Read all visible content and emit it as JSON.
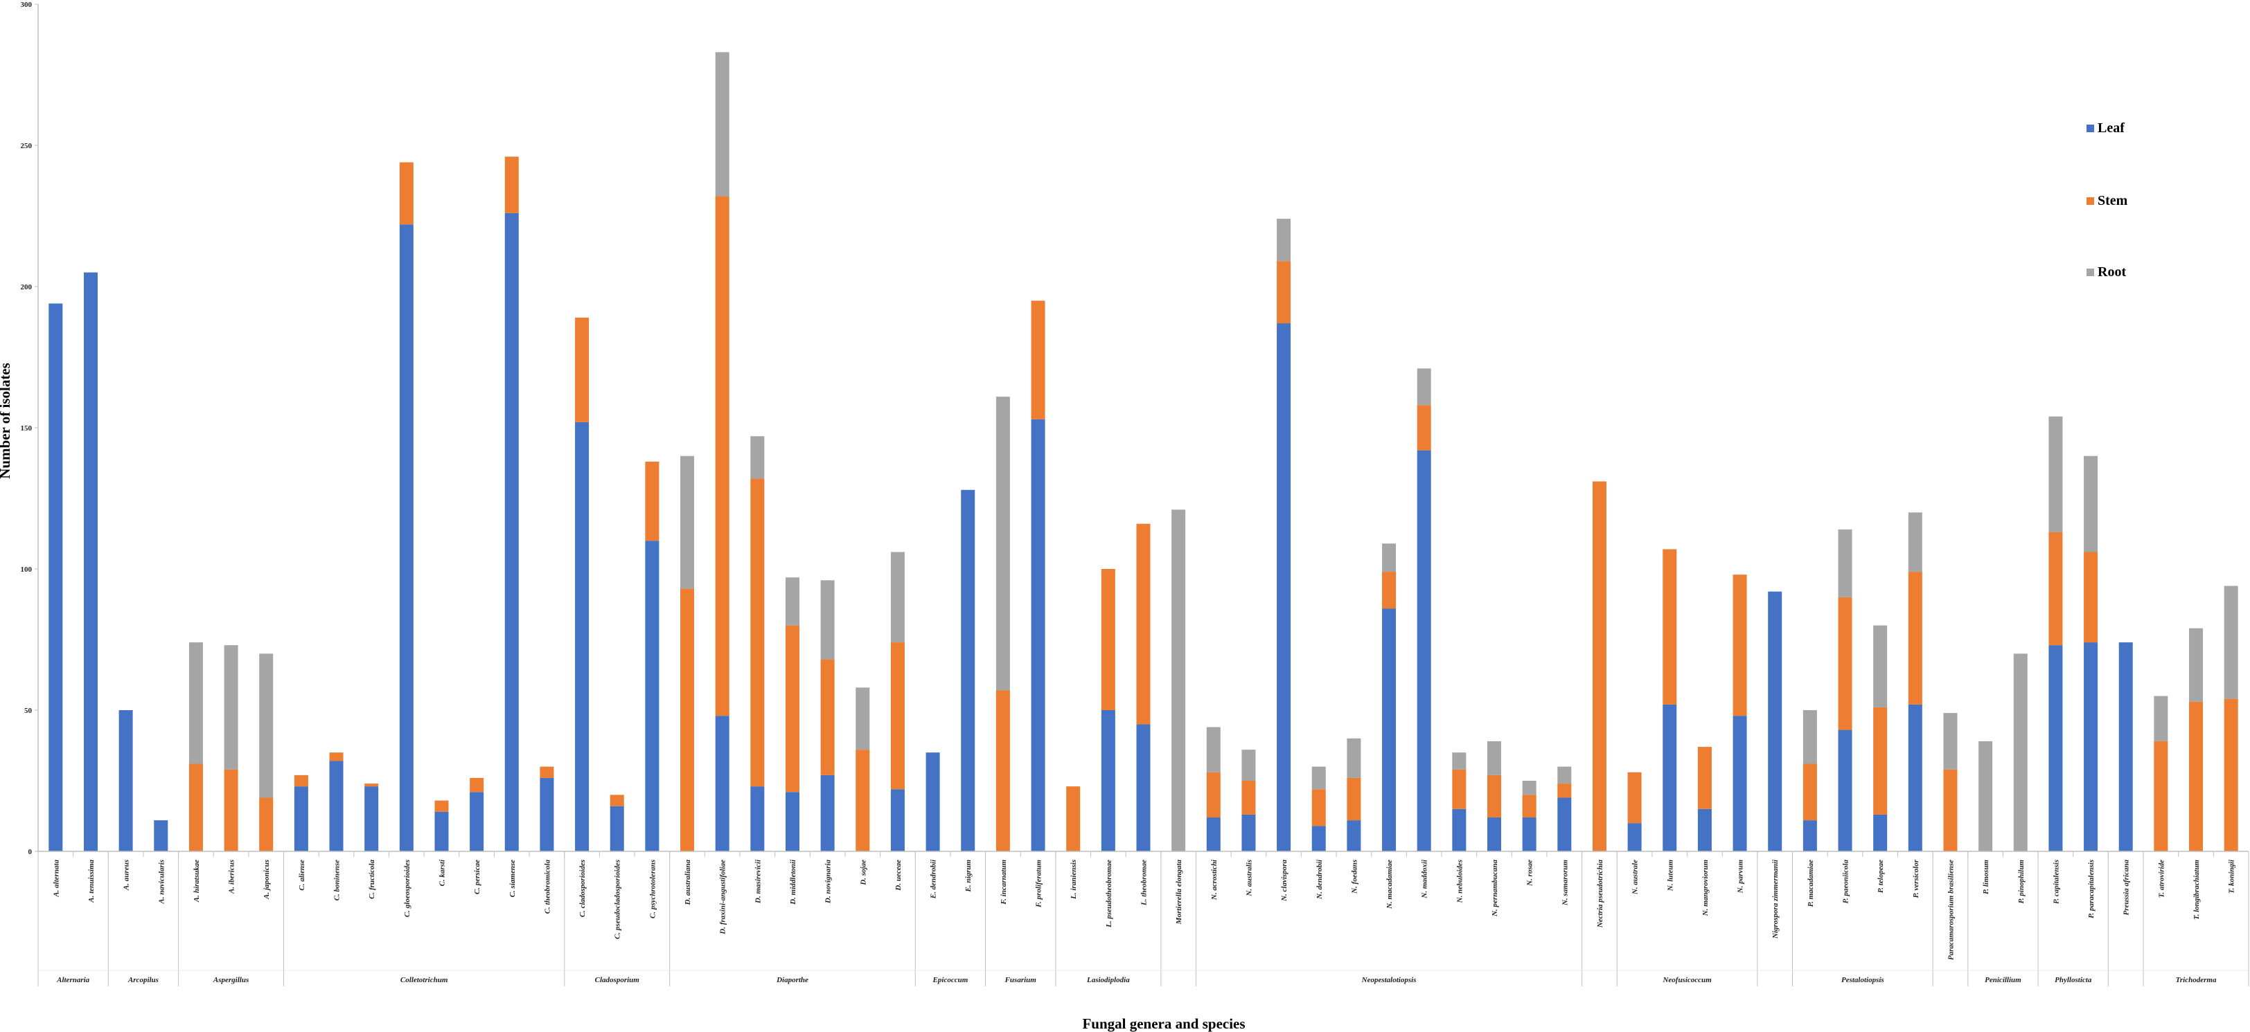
{
  "chart_data": {
    "type": "bar",
    "stacked": true,
    "xlabel": "Fungal genera and species",
    "ylabel": "Number of isolates",
    "ylim": [
      0,
      300
    ],
    "yticks": [
      0,
      50,
      100,
      150,
      200,
      250,
      300
    ],
    "legend_position": "right",
    "series": [
      {
        "name": "Leaf",
        "color": "#4472C4"
      },
      {
        "name": "Stem",
        "color": "#ED7D31"
      },
      {
        "name": "Root",
        "color": "#A5A5A5"
      }
    ],
    "groups": [
      {
        "genus": "Alternaria",
        "species": [
          {
            "name": "A. alternata",
            "values": [
              194,
              0,
              0
            ]
          },
          {
            "name": "A. tenuissima",
            "values": [
              205,
              0,
              0
            ]
          }
        ]
      },
      {
        "genus": "Arcopilus",
        "species": [
          {
            "name": "A. aureus",
            "values": [
              50,
              0,
              0
            ]
          },
          {
            "name": "A. navicularis",
            "values": [
              11,
              0,
              0
            ]
          }
        ]
      },
      {
        "genus": "Aspergillus",
        "species": [
          {
            "name": "A. hiratsukae",
            "values": [
              0,
              31,
              43
            ]
          },
          {
            "name": "A. ibericus",
            "values": [
              0,
              29,
              44
            ]
          },
          {
            "name": "A. japonicus",
            "values": [
              0,
              19,
              51
            ]
          }
        ]
      },
      {
        "genus": "Colletotrichum",
        "species": [
          {
            "name": "C. aliense",
            "values": [
              23,
              4,
              0
            ]
          },
          {
            "name": "C. boninense",
            "values": [
              32,
              3,
              0
            ]
          },
          {
            "name": "C. fructicola",
            "values": [
              23,
              1,
              0
            ]
          },
          {
            "name": "C. gloeosporioides",
            "values": [
              222,
              22,
              0
            ]
          },
          {
            "name": "C. karsti",
            "values": [
              14,
              4,
              0
            ]
          },
          {
            "name": "C. persicae",
            "values": [
              21,
              5,
              0
            ]
          },
          {
            "name": "C. siamense",
            "values": [
              226,
              20,
              0
            ]
          },
          {
            "name": "C. theobromicola",
            "values": [
              26,
              4,
              0
            ]
          }
        ]
      },
      {
        "genus": "Cladosporium",
        "species": [
          {
            "name": "C. cladosporioides",
            "values": [
              152,
              37,
              0
            ]
          },
          {
            "name": "C. pseudocladosporioides",
            "values": [
              16,
              4,
              0
            ]
          },
          {
            "name": "C. psychrotolerans",
            "values": [
              110,
              28,
              0
            ]
          }
        ]
      },
      {
        "genus": "Diaporthe",
        "species": [
          {
            "name": "D. australiana",
            "values": [
              0,
              93,
              47
            ]
          },
          {
            "name": "D. fraxini-angustifoliae",
            "values": [
              48,
              184,
              51
            ]
          },
          {
            "name": "D. masirevicii",
            "values": [
              23,
              109,
              15
            ]
          },
          {
            "name": "D. middletonii",
            "values": [
              21,
              59,
              17
            ]
          },
          {
            "name": "D. novignaria",
            "values": [
              27,
              41,
              28
            ]
          },
          {
            "name": "D. sojae",
            "values": [
              0,
              36,
              22
            ]
          },
          {
            "name": "D. ueceae",
            "values": [
              22,
              52,
              32
            ]
          }
        ]
      },
      {
        "genus": "Epicoccum",
        "species": [
          {
            "name": "E. dendrobii",
            "values": [
              35,
              0,
              0
            ]
          },
          {
            "name": "E. nigrum",
            "values": [
              128,
              0,
              0
            ]
          }
        ]
      },
      {
        "genus": "Fusarium",
        "species": [
          {
            "name": "F. incarnatum",
            "values": [
              0,
              57,
              104
            ]
          },
          {
            "name": "F. proliferatum",
            "values": [
              153,
              42,
              0
            ]
          }
        ]
      },
      {
        "genus": "Lasiodiplodia",
        "species": [
          {
            "name": "L. iraniensis",
            "values": [
              0,
              23,
              0
            ]
          },
          {
            "name": "L. pseudotheobromae",
            "values": [
              50,
              50,
              0
            ]
          },
          {
            "name": "L. theobromae",
            "values": [
              45,
              71,
              0
            ]
          }
        ]
      },
      {
        "genus": "",
        "species": [
          {
            "name": "Mortierella elongata",
            "values": [
              0,
              0,
              121
            ]
          }
        ]
      },
      {
        "genus": "Neopestalotiopsis",
        "species": [
          {
            "name": "N. acrostichi",
            "values": [
              12,
              16,
              16
            ]
          },
          {
            "name": "N. australis",
            "values": [
              13,
              12,
              11
            ]
          },
          {
            "name": "N. clavispora",
            "values": [
              187,
              22,
              15
            ]
          },
          {
            "name": "N. dendrobii",
            "values": [
              9,
              13,
              8
            ]
          },
          {
            "name": "N. foedans",
            "values": [
              11,
              15,
              14
            ]
          },
          {
            "name": "N. macadamiae",
            "values": [
              86,
              13,
              10
            ]
          },
          {
            "name": "N. maddoxii",
            "values": [
              142,
              16,
              13
            ]
          },
          {
            "name": "N. nebuloides",
            "values": [
              15,
              14,
              6
            ]
          },
          {
            "name": "N. pernambucana",
            "values": [
              12,
              15,
              12
            ]
          },
          {
            "name": "N. rosae",
            "values": [
              12,
              8,
              5
            ]
          },
          {
            "name": "N. samarorum",
            "values": [
              19,
              5,
              6
            ]
          }
        ]
      },
      {
        "genus": "",
        "species": [
          {
            "name": "Nectria pseudotrichia",
            "values": [
              0,
              131,
              0
            ]
          }
        ]
      },
      {
        "genus": "Neofusicoccum",
        "species": [
          {
            "name": "N. australe",
            "values": [
              10,
              18,
              0
            ]
          },
          {
            "name": "N. luteum",
            "values": [
              52,
              55,
              0
            ]
          },
          {
            "name": "N. mangroviorum",
            "values": [
              15,
              22,
              0
            ]
          },
          {
            "name": "N. parvum",
            "values": [
              48,
              50,
              0
            ]
          }
        ]
      },
      {
        "genus": "",
        "species": [
          {
            "name": "Nigrospora zimmermanii",
            "values": [
              92,
              0,
              0
            ]
          }
        ]
      },
      {
        "genus": "Pestalotiopsis",
        "species": [
          {
            "name": "P. macadamiae",
            "values": [
              11,
              20,
              19
            ]
          },
          {
            "name": "P. paeoniicola",
            "values": [
              43,
              47,
              24
            ]
          },
          {
            "name": "P. telopeae",
            "values": [
              13,
              38,
              29
            ]
          },
          {
            "name": "P. versicolor",
            "values": [
              52,
              47,
              21
            ]
          }
        ]
      },
      {
        "genus": "",
        "species": [
          {
            "name": "Paracamarosporium brasiliense",
            "values": [
              0,
              29,
              20
            ]
          }
        ]
      },
      {
        "genus": "Penicillium",
        "species": [
          {
            "name": "P. limosum",
            "values": [
              0,
              0,
              39
            ]
          },
          {
            "name": "P. pinophilum",
            "values": [
              0,
              0,
              70
            ]
          }
        ]
      },
      {
        "genus": "Phyllosticta",
        "species": [
          {
            "name": "P. capitalensis",
            "values": [
              73,
              40,
              41
            ]
          },
          {
            "name": "P. paracapitalensis",
            "values": [
              74,
              32,
              34
            ]
          }
        ]
      },
      {
        "genus": "",
        "species": [
          {
            "name": "Preussia africana",
            "values": [
              74,
              0,
              0
            ]
          }
        ]
      },
      {
        "genus": "Trichoderma",
        "species": [
          {
            "name": "T. atroviride",
            "values": [
              0,
              39,
              16
            ]
          },
          {
            "name": "T. longibrachiatum",
            "values": [
              0,
              53,
              26
            ]
          },
          {
            "name": "T. koningii",
            "values": [
              0,
              54,
              40
            ]
          }
        ]
      }
    ]
  }
}
